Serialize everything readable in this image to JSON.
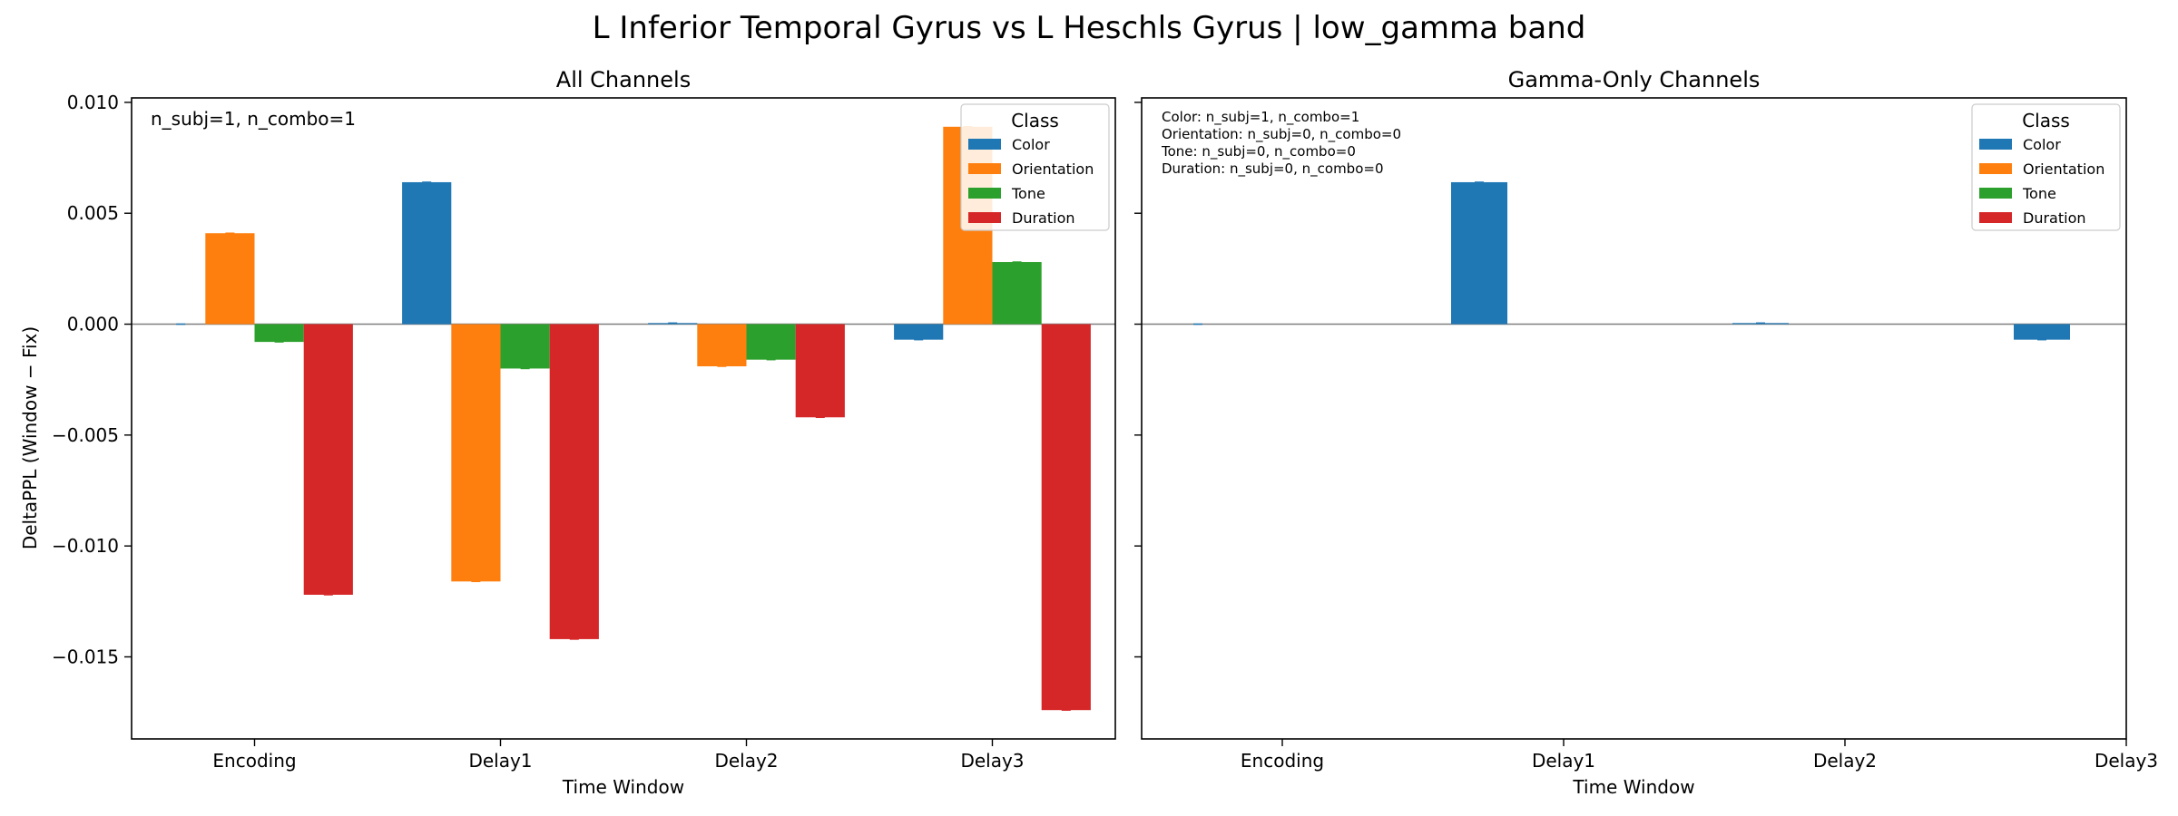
{
  "figure": {
    "suptitle": "L Inferior Temporal Gyrus vs L Heschls Gyrus  |  low_gamma band",
    "ylabel": "DeltaPPL (Window − Fix)",
    "xlabel": "Time Window",
    "legend_title": "Class"
  },
  "colors": {
    "Color": "#1f77b4",
    "Orientation": "#ff7f0e",
    "Tone": "#2ca02c",
    "Duration": "#d62728"
  },
  "chart_data": [
    {
      "type": "bar",
      "title": "All Channels",
      "xlabel": "Time Window",
      "ylabel": "DeltaPPL (Window − Fix)",
      "categories": [
        "Encoding",
        "Delay1",
        "Delay2",
        "Delay3"
      ],
      "ylim": [
        -0.0187,
        0.0102
      ],
      "yticks": [
        {
          "value": 0.01,
          "label": "0.010"
        },
        {
          "value": 0.005,
          "label": "0.005"
        },
        {
          "value": 0.0,
          "label": "0.000"
        },
        {
          "value": -0.005,
          "label": "−0.005"
        },
        {
          "value": -0.01,
          "label": "−0.010"
        },
        {
          "value": -0.015,
          "label": "−0.015"
        }
      ],
      "series": [
        {
          "name": "Color",
          "values": [
            0.0,
            0.0064,
            5e-05,
            -0.0007
          ]
        },
        {
          "name": "Orientation",
          "values": [
            0.0041,
            -0.0116,
            -0.0019,
            0.0089
          ]
        },
        {
          "name": "Tone",
          "values": [
            -0.0008,
            -0.002,
            -0.0016,
            0.0028
          ]
        },
        {
          "name": "Duration",
          "values": [
            -0.0122,
            -0.0142,
            -0.0042,
            -0.0174
          ]
        }
      ],
      "annotation": [
        "n_subj=1, n_combo=1"
      ],
      "legend": "top-right"
    },
    {
      "type": "bar",
      "title": "Gamma-Only Channels",
      "xlabel": "Time Window",
      "categories": [
        "Encoding",
        "Delay1",
        "Delay2",
        "Delay3"
      ],
      "ylim": [
        -0.0187,
        0.0102
      ],
      "series": [
        {
          "name": "Color",
          "values": [
            0.0,
            0.0064,
            5e-05,
            -0.0007
          ]
        },
        {
          "name": "Orientation",
          "values": [
            0,
            0,
            0,
            0
          ]
        },
        {
          "name": "Tone",
          "values": [
            0,
            0,
            0,
            0
          ]
        },
        {
          "name": "Duration",
          "values": [
            0,
            0,
            0,
            0
          ]
        }
      ],
      "annotation": [
        "Color: n_subj=1, n_combo=1",
        "Orientation: n_subj=0, n_combo=0",
        "Tone: n_subj=0, n_combo=0",
        "Duration: n_subj=0, n_combo=0"
      ],
      "legend": "top-right"
    }
  ]
}
